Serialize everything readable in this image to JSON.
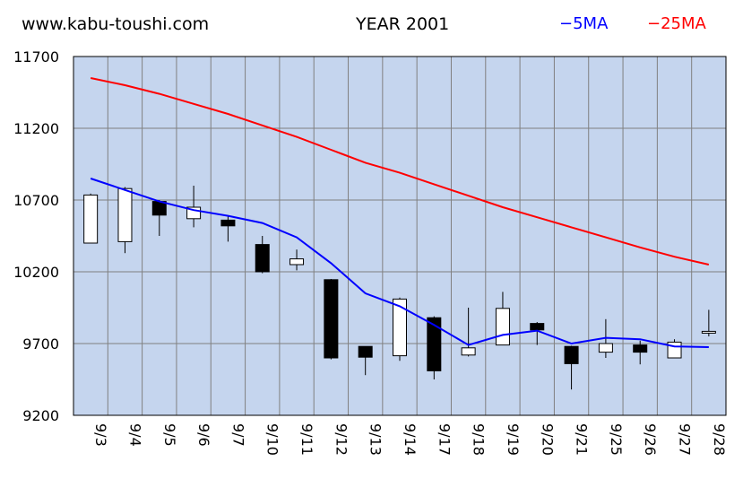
{
  "header": {
    "site": "www.kabu-toushi.com",
    "title": "YEAR 2001"
  },
  "legend": [
    {
      "label": "−5MA",
      "color": "#0000ff"
    },
    {
      "label": "−25MA",
      "color": "#ff0000"
    }
  ],
  "colors": {
    "plot_background": "#c5d5ee",
    "grid": "#808080",
    "bull_body": "#ffffff",
    "bear_body": "#000000",
    "ma5": "#0000ff",
    "ma25": "#ff0000"
  },
  "chart_data": {
    "type": "candlestick",
    "title": "YEAR 2001",
    "ylim": [
      9200,
      11700
    ],
    "yticks": [
      9200,
      9700,
      10200,
      10700,
      11200,
      11700
    ],
    "categories": [
      "9/3",
      "9/4",
      "9/5",
      "9/6",
      "9/7",
      "9/10",
      "9/11",
      "9/12",
      "9/13",
      "9/14",
      "9/17",
      "9/18",
      "9/19",
      "9/20",
      "9/21",
      "9/25",
      "9/26",
      "9/27",
      "9/28"
    ],
    "ohlc": [
      {
        "open": 10400,
        "high": 10745,
        "low": 10400,
        "close": 10735
      },
      {
        "open": 10410,
        "high": 10790,
        "low": 10330,
        "close": 10780
      },
      {
        "open": 10690,
        "high": 10700,
        "low": 10450,
        "close": 10595
      },
      {
        "open": 10570,
        "high": 10800,
        "low": 10510,
        "close": 10650
      },
      {
        "open": 10560,
        "high": 10590,
        "low": 10410,
        "close": 10520
      },
      {
        "open": 10390,
        "high": 10450,
        "low": 10190,
        "close": 10200
      },
      {
        "open": 10250,
        "high": 10355,
        "low": 10210,
        "close": 10290
      },
      {
        "open": 10145,
        "high": 10150,
        "low": 9590,
        "close": 9600
      },
      {
        "open": 9680,
        "high": 9680,
        "low": 9480,
        "close": 9605
      },
      {
        "open": 9615,
        "high": 10020,
        "low": 9580,
        "close": 10010
      },
      {
        "open": 9880,
        "high": 9890,
        "low": 9450,
        "close": 9510
      },
      {
        "open": 9620,
        "high": 9950,
        "low": 9610,
        "close": 9670
      },
      {
        "open": 9690,
        "high": 10060,
        "low": 9690,
        "close": 9945
      },
      {
        "open": 9840,
        "high": 9850,
        "low": 9690,
        "close": 9795
      },
      {
        "open": 9680,
        "high": 9685,
        "low": 9380,
        "close": 9560
      },
      {
        "open": 9640,
        "high": 9870,
        "low": 9600,
        "close": 9700
      },
      {
        "open": 9690,
        "high": 9720,
        "low": 9555,
        "close": 9640
      },
      {
        "open": 9600,
        "high": 9730,
        "low": 9600,
        "close": 9710
      },
      {
        "open": 9775,
        "high": 9935,
        "low": 9750,
        "close": 9785
      }
    ],
    "series": [
      {
        "name": "5MA",
        "color": "#0000ff",
        "values": [
          10850,
          10770,
          10690,
          10630,
          10590,
          10540,
          10440,
          10260,
          10050,
          9960,
          9830,
          9690,
          9760,
          9790,
          9700,
          9740,
          9730,
          9680,
          9675
        ]
      },
      {
        "name": "25MA",
        "color": "#ff0000",
        "values": [
          11550,
          11500,
          11440,
          11370,
          11300,
          11220,
          11140,
          11050,
          10960,
          10890,
          10810,
          10730,
          10650,
          10580,
          10510,
          10440,
          10370,
          10305,
          10250
        ]
      }
    ],
    "grid": true
  }
}
